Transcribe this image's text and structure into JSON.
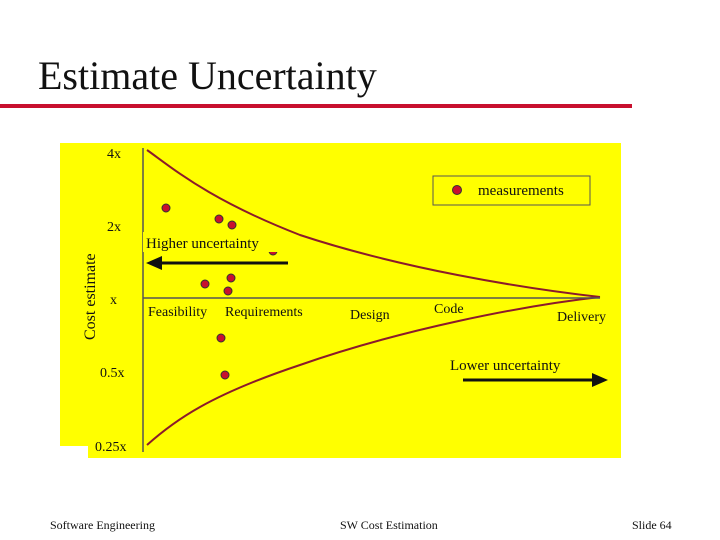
{
  "slide": {
    "title": "Estimate Uncertainty",
    "accent_color": "#c8102e",
    "panel_color": "#ffff00",
    "curve_color": "#8b1a2b",
    "dot_color": "#c8102e"
  },
  "diagram": {
    "y_axis_label": "Cost estimate",
    "y_ticks": [
      "4x",
      "2x",
      "x",
      "0.5x",
      "0.25x"
    ],
    "phases": [
      "Feasibility",
      "Requirements",
      "Design",
      "Code",
      "Delivery"
    ],
    "legend": "measurements",
    "higher_label": "Higher uncertainty",
    "lower_label": "Lower uncertainty"
  },
  "footer": {
    "left": "Software Engineering",
    "center": "SW Cost Estimation",
    "right": "Slide 64"
  }
}
